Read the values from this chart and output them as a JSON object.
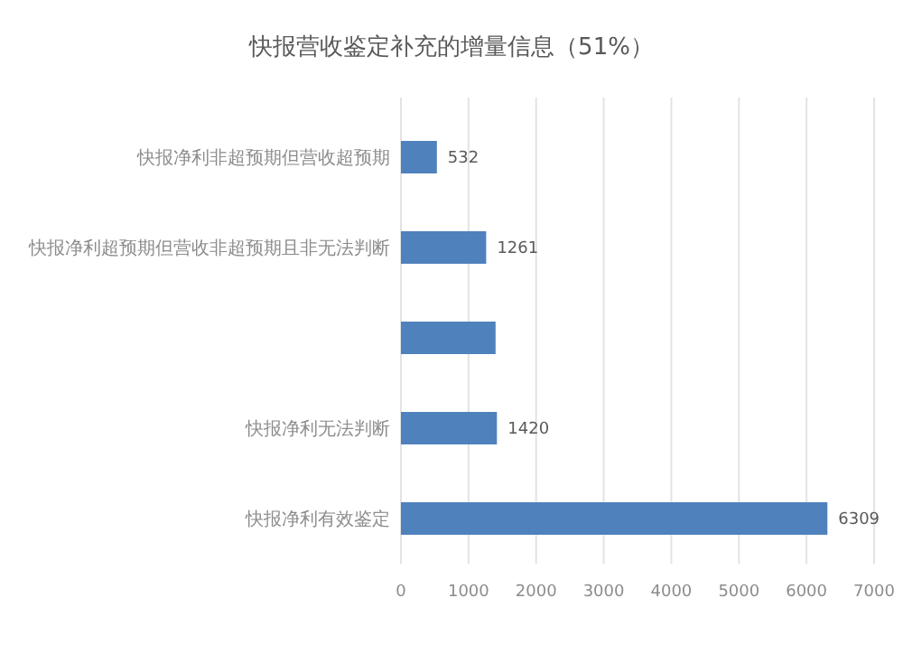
{
  "chart_data": {
    "type": "bar",
    "orientation": "horizontal",
    "title": "快报营收鉴定补充的增量信息（51%）",
    "categories": [
      "快报净利非超预期但营收超预期",
      "快报净利超预期但营收非超预期且非无法判断",
      null,
      "快报净利无法判断",
      "快报净利有效鉴定"
    ],
    "values": [
      532,
      1261,
      1400,
      1420,
      6309
    ],
    "value_labels": [
      "532",
      "1261",
      null,
      "1420",
      "6309"
    ],
    "color": "#4f81bd",
    "xlim": [
      0,
      7000
    ],
    "xticks": [
      0,
      1000,
      2000,
      3000,
      4000,
      5000,
      6000,
      7000
    ],
    "grid": "x"
  }
}
